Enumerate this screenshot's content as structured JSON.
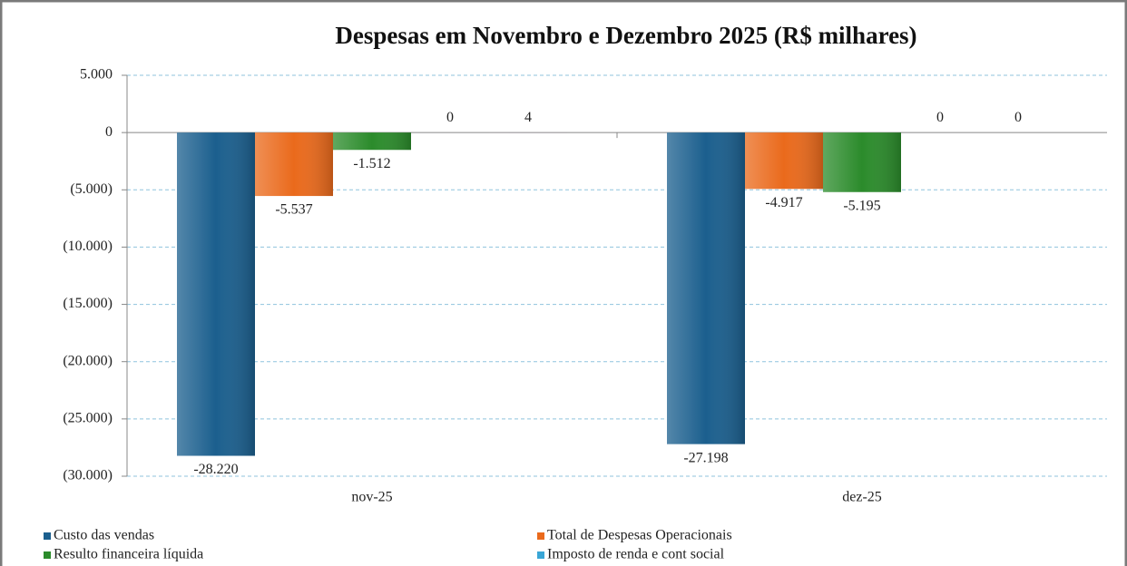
{
  "chart_data": {
    "type": "bar",
    "title": "Despesas em Novembro e Dezembro 2025 (R$ milhares)",
    "categories": [
      "nov-25",
      "dez-25"
    ],
    "series": [
      {
        "name": "Custo das vendas",
        "color": "#1b5f8e",
        "values": [
          -28220,
          -27198
        ],
        "value_labels": [
          "-28.220",
          "-27.198"
        ]
      },
      {
        "name": "Total de Despesas Operacionais",
        "color": "#ea6a1c",
        "values": [
          -5537,
          -4917
        ],
        "value_labels": [
          "-5.537",
          "-4.917"
        ]
      },
      {
        "name": "Resulto financeira líquida",
        "color": "#2b8b2b",
        "values": [
          -1512,
          -5195
        ],
        "value_labels": [
          "-1.512",
          "-5.195"
        ]
      },
      {
        "name": "Imposto de renda e cont social",
        "color": "#3aa6d6",
        "values": [
          0,
          0
        ],
        "value_labels": [
          "0",
          "0"
        ]
      },
      {
        "color": "#8b5a9c",
        "values": [
          4,
          0
        ],
        "value_labels": [
          "4",
          "0"
        ]
      }
    ],
    "ylim": [
      -30000,
      5000
    ],
    "yticks": [
      {
        "value": 5000,
        "label": "5.000"
      },
      0,
      {
        "value": -5000,
        "label": "(5.000)"
      },
      {
        "value": -10000,
        "label": "(10.000)"
      },
      {
        "value": -15000,
        "label": "(15.000)"
      },
      {
        "value": -20000,
        "label": "(20.000)"
      },
      {
        "value": -25000,
        "label": "(25.000)"
      },
      {
        "value": -30000,
        "label": "(30.000)"
      }
    ],
    "grid": true
  }
}
